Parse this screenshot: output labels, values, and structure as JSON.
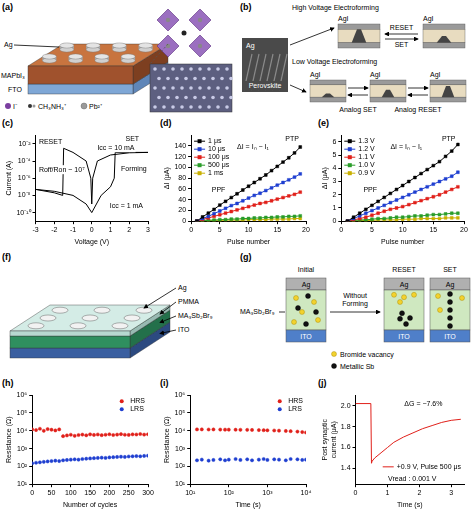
{
  "figure": {
    "a": {
      "letter": "(a)",
      "device_layers": [
        "Ag",
        "MAPbI₃",
        "FTO"
      ],
      "ions": [
        "I⁻",
        "CH₃NH₃⁺",
        "Pb²⁺"
      ]
    },
    "b": {
      "letter": "(b)",
      "image_labels": [
        "Ag",
        "Perovskite"
      ],
      "forming": [
        "High Voltage Electroforming",
        "Low Voltage Electroforming"
      ],
      "switching": [
        "RESET",
        "SET",
        "Analog SET",
        "Analog RESET"
      ],
      "devices": [
        "AgI",
        "AgI",
        "AgI",
        "AgI",
        "AgI"
      ]
    },
    "f": {
      "letter": "(f)",
      "layers": [
        "Ag",
        "PMMA",
        "MA₃Sb₂Br₉",
        "ITO"
      ]
    },
    "g": {
      "letter": "(g)",
      "material": "MA₃Sb₂Br₉",
      "states": [
        "Initial",
        "RESET",
        "SET"
      ],
      "transition": "Without Forming",
      "electrodes": [
        "Ag",
        "ITO"
      ],
      "legend": [
        {
          "label": "Bromide vacancy",
          "color": "#f2d22e"
        },
        {
          "label": "Metallic Sb",
          "color": "#111111"
        }
      ]
    }
  },
  "chart_data": [
    {
      "panel": "(c)",
      "type": "line",
      "x_label": "Voltage (V)",
      "y_label": "Current (A)",
      "x": [
        0,
        0.5,
        1,
        1.2,
        1.25,
        2,
        3,
        2,
        1,
        0.3,
        0.05,
        0,
        -0.05,
        -0.3,
        -1,
        -1.5,
        -1.55,
        -2,
        -3,
        -2,
        -1,
        -0.3,
        0
      ],
      "values": [
        1e-10,
        1e-08,
        1e-07,
        1e-06,
        0.001,
        0.001,
        0.001,
        0.0009,
        0.0005,
        0.0001,
        1e-06,
        1e-09,
        1e-06,
        0.0001,
        0.001,
        0.003,
        1e-08,
        2e-08,
        5e-08,
        3e-08,
        1e-08,
        1e-09,
        1e-10
      ],
      "color": "#000000",
      "log": "y",
      "xlim": [
        -3,
        3
      ],
      "xticks": [
        -3,
        -2,
        -1,
        0,
        1,
        2,
        3
      ],
      "ylim": [
        1e-11,
        0.1
      ],
      "yticks": [
        {
          "value": 1e-10,
          "label": "10⁻¹⁰"
        },
        {
          "value": 1e-08,
          "label": "10⁻⁸"
        },
        {
          "value": 1e-06,
          "label": "10⁻⁶"
        },
        {
          "value": 0.0001,
          "label": "10⁻⁴"
        },
        {
          "value": 0.01,
          "label": "10⁻²"
        }
      ],
      "grid": false,
      "annotations": [
        "RESET",
        "SET",
        "Icc = 10 mA",
        "Icc = 1 mA",
        "Forming",
        "Roff/Ron ~ 10⁷"
      ]
    },
    {
      "panel": "(d)",
      "type": "line",
      "marker": "square",
      "x_label": "Pulse number",
      "y_label": "ΔI (μA)",
      "x": [
        1,
        2,
        3,
        4,
        5,
        6,
        7,
        8,
        9,
        10,
        11,
        12,
        13,
        14,
        15,
        16,
        17,
        18,
        19
      ],
      "series": [
        {
          "name": "1 μs",
          "color": "#000000",
          "values": [
            0,
            8,
            15,
            22,
            30,
            37,
            44,
            51,
            58,
            65,
            72,
            79,
            86,
            94,
            102,
            110,
            118,
            127,
            138
          ]
        },
        {
          "name": "10 μs",
          "color": "#1f3fd0",
          "values": [
            0,
            5,
            9,
            14,
            19,
            24,
            29,
            33,
            38,
            43,
            48,
            52,
            57,
            62,
            67,
            72,
            77,
            82,
            88
          ]
        },
        {
          "name": "100 μs",
          "color": "#e0201a",
          "values": [
            0,
            3,
            6,
            9,
            12,
            15,
            18,
            21,
            24,
            27,
            30,
            33,
            35,
            38,
            41,
            44,
            47,
            50,
            54
          ]
        },
        {
          "name": "500 μs",
          "color": "#2a9d2a",
          "values": [
            0,
            1,
            2,
            2,
            3,
            3,
            4,
            4,
            5,
            5,
            6,
            6,
            7,
            7,
            8,
            8,
            9,
            9,
            10
          ]
        },
        {
          "name": "1 ms",
          "color": "#c9b000",
          "values": [
            0,
            0,
            1,
            1,
            1,
            2,
            2,
            2,
            2,
            3,
            3,
            3,
            3,
            4,
            4,
            4,
            4,
            5,
            5
          ]
        }
      ],
      "xlim": [
        0,
        20
      ],
      "xticks": [
        0,
        5,
        10,
        15,
        20
      ],
      "ylim": [
        0,
        160
      ],
      "yticks": [
        0,
        20,
        40,
        60,
        80,
        100,
        120,
        140
      ],
      "grid": false,
      "legend": "upper left",
      "annotations": [
        "PTP",
        "PPF",
        "ΔI = Iₙ − I₁"
      ]
    },
    {
      "panel": "(e)",
      "type": "line",
      "marker": "square",
      "x_label": "Pulse number",
      "y_label": "ΔI (μA)",
      "x": [
        1,
        2,
        3,
        4,
        5,
        6,
        7,
        8,
        9,
        10,
        11,
        12,
        13,
        14,
        15,
        16,
        17,
        18,
        19
      ],
      "series": [
        {
          "name": "1.3 V",
          "color": "#000000",
          "values": [
            0,
            0.3,
            0.6,
            0.9,
            1.2,
            1.5,
            1.8,
            2.1,
            2.4,
            2.7,
            3.0,
            3.3,
            3.6,
            3.9,
            4.2,
            4.5,
            4.9,
            5.3,
            5.8
          ]
        },
        {
          "name": "1.2 V",
          "color": "#1f3fd0",
          "values": [
            0,
            0.2,
            0.4,
            0.6,
            0.8,
            1.0,
            1.2,
            1.4,
            1.6,
            1.8,
            2.0,
            2.2,
            2.4,
            2.6,
            2.8,
            3.0,
            3.2,
            3.4,
            3.7
          ]
        },
        {
          "name": "1.1 V",
          "color": "#e0201a",
          "values": [
            0,
            0.1,
            0.2,
            0.3,
            0.45,
            0.6,
            0.75,
            0.9,
            1.0,
            1.1,
            1.25,
            1.4,
            1.55,
            1.7,
            1.85,
            2.0,
            2.2,
            2.4,
            2.6
          ]
        },
        {
          "name": "1.0 V",
          "color": "#2a9d2a",
          "values": [
            0,
            0.05,
            0.1,
            0.1,
            0.15,
            0.2,
            0.2,
            0.25,
            0.3,
            0.3,
            0.35,
            0.4,
            0.4,
            0.45,
            0.5,
            0.5,
            0.55,
            0.6,
            0.6
          ]
        },
        {
          "name": "0.9 V",
          "color": "#c9b000",
          "values": [
            0,
            0,
            0.05,
            0.05,
            0.05,
            0.1,
            0.1,
            0.1,
            0.1,
            0.15,
            0.15,
            0.15,
            0.2,
            0.2,
            0.2,
            0.2,
            0.25,
            0.25,
            0.25
          ]
        }
      ],
      "xlim": [
        0,
        20
      ],
      "xticks": [
        0,
        5,
        10,
        15,
        20
      ],
      "ylim": [
        0,
        6.5
      ],
      "yticks": [
        0,
        1,
        2,
        3,
        4,
        5,
        6
      ],
      "grid": false,
      "legend": "upper left",
      "annotations": [
        "PTP",
        "PPF",
        "ΔI = Iₙ − I₁"
      ]
    },
    {
      "panel": "(h)",
      "type": "scatter",
      "marker": "circle",
      "x_label": "Number of cycles",
      "y_label": "Resistance (Ω)",
      "x": [
        0,
        10,
        20,
        30,
        40,
        50,
        60,
        70,
        80,
        90,
        100,
        110,
        120,
        130,
        140,
        150,
        160,
        170,
        180,
        190,
        200,
        210,
        220,
        230,
        240,
        250,
        260,
        270,
        280,
        290,
        300
      ],
      "series": [
        {
          "name": "HRS",
          "color": "#e0201a",
          "values": [
            12000,
            11000,
            13000,
            10000,
            12500,
            11500,
            10500,
            12000,
            5000,
            5500,
            6000,
            5200,
            5800,
            6100,
            5600,
            6300,
            5900,
            6200,
            5700,
            6000,
            6400,
            5800,
            6100,
            6500,
            6000,
            5900,
            6300,
            6200,
            6600,
            6100,
            6400
          ]
        },
        {
          "name": "LRS",
          "color": "#1f3fd0",
          "values": [
            150,
            160,
            170,
            180,
            190,
            200,
            210,
            200,
            220,
            230,
            240,
            250,
            240,
            260,
            270,
            280,
            290,
            300,
            310,
            300,
            320,
            330,
            340,
            350,
            340,
            360,
            370,
            380,
            370,
            390,
            400
          ]
        }
      ],
      "log": "y",
      "xlim": [
        0,
        300
      ],
      "xticks": [
        0,
        50,
        100,
        150,
        200,
        250,
        300
      ],
      "ylim": [
        10,
        1000000
      ],
      "yticks": [
        {
          "value": 10,
          "label": "10¹"
        },
        {
          "value": 100,
          "label": "10²"
        },
        {
          "value": 1000,
          "label": "10³"
        },
        {
          "value": 10000,
          "label": "10⁴"
        },
        {
          "value": 100000,
          "label": "10⁵"
        },
        {
          "value": 1000000,
          "label": "10⁶"
        }
      ],
      "grid": false,
      "legend": "upper right"
    },
    {
      "panel": "(i)",
      "type": "scatter",
      "marker": "circle",
      "x_label": "Time (s)",
      "y_label": "Resistance (Ω)",
      "x": [
        15,
        20,
        30,
        40,
        60,
        80,
        100,
        150,
        200,
        300,
        400,
        600,
        800,
        1000,
        1500,
        2000,
        3000,
        4000,
        6000,
        8000,
        10000
      ],
      "series": [
        {
          "name": "HRS",
          "color": "#e0201a",
          "values": [
            12000,
            12000,
            11800,
            11900,
            11700,
            11600,
            11600,
            11500,
            11400,
            11300,
            11200,
            11000,
            10800,
            10700,
            10400,
            10200,
            9800,
            9500,
            9000,
            8500,
            8000
          ]
        },
        {
          "name": "LRS",
          "color": "#1f3fd0",
          "values": [
            220,
            240,
            210,
            230,
            250,
            220,
            240,
            260,
            230,
            250,
            220,
            240,
            260,
            230,
            250,
            240,
            220,
            260,
            250,
            230,
            240
          ]
        }
      ],
      "log": true,
      "xlim": [
        10,
        10000
      ],
      "xticks": [
        {
          "value": 10,
          "label": "10¹"
        },
        {
          "value": 100,
          "label": "10²"
        },
        {
          "value": 1000,
          "label": "10³"
        },
        {
          "value": 10000,
          "label": "10⁴"
        }
      ],
      "ylim": [
        10,
        1000000
      ],
      "yticks": [
        {
          "value": 10,
          "label": "10¹"
        },
        {
          "value": 100,
          "label": "10²"
        },
        {
          "value": 1000,
          "label": "10³"
        },
        {
          "value": 10000,
          "label": "10⁴"
        },
        {
          "value": 100000,
          "label": "10⁵"
        },
        {
          "value": 1000000,
          "label": "10⁶"
        }
      ],
      "grid": false,
      "legend": "upper right"
    },
    {
      "panel": "(j)",
      "type": "line",
      "x_label": "Time (s)",
      "y_label": "Post synaptic current (μA)",
      "x": [
        0,
        0.48,
        0.5,
        0.52,
        0.6,
        0.8,
        1.0,
        1.2,
        1.5,
        1.8,
        2.1,
        2.4,
        2.7,
        3.0,
        3.3
      ],
      "series": [
        {
          "name": "+0.9 V, Pulse 500 μs",
          "color": "#e0201a",
          "values": [
            2.02,
            2.02,
            1.45,
            1.47,
            1.5,
            1.55,
            1.6,
            1.65,
            1.7,
            1.74,
            1.78,
            1.81,
            1.84,
            1.86,
            1.87
          ]
        }
      ],
      "xlim": [
        0,
        3.4
      ],
      "xticks": [
        0,
        1,
        2,
        3
      ],
      "ylim": [
        1.25,
        2.1
      ],
      "yticks": [
        1.4,
        1.6,
        1.8,
        {
          "value": 2,
          "label": "2.0"
        }
      ],
      "grid": false,
      "legend": "lower right",
      "annotations": [
        "ΔG = −7.6%",
        "Vread : 0.001 V"
      ]
    }
  ]
}
